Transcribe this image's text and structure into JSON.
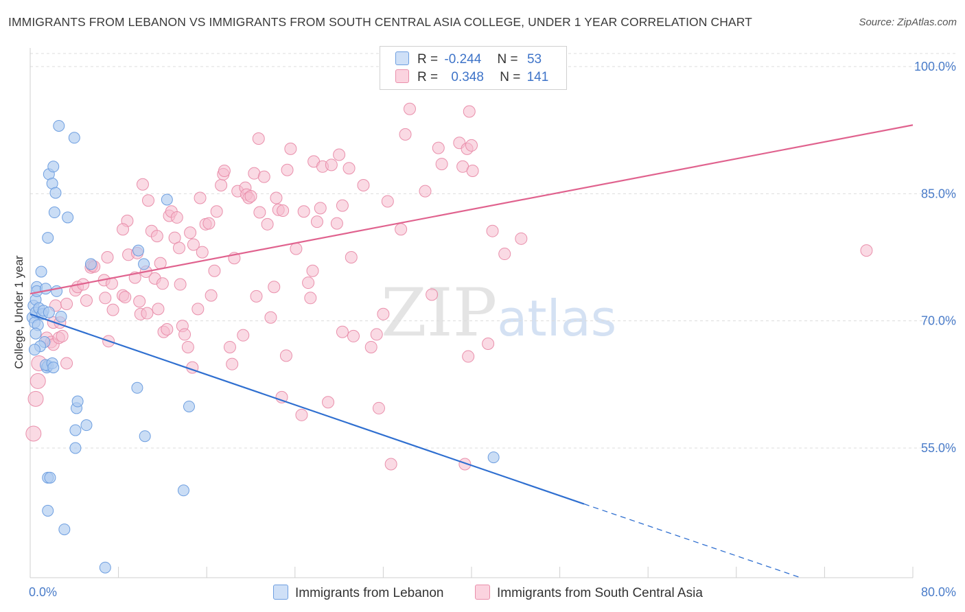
{
  "title": "IMMIGRANTS FROM LEBANON VS IMMIGRANTS FROM SOUTH CENTRAL ASIA COLLEGE, UNDER 1 YEAR CORRELATION CHART",
  "source": "Source: ZipAtlas.com",
  "watermark": {
    "a": "ZIP",
    "b": "atlas"
  },
  "legend": {
    "rows": [
      {
        "r_label": "R =",
        "r_value": "-0.244",
        "n_label": "N =",
        "n_value": "53",
        "color": "#aecbf0"
      },
      {
        "r_label": "R =",
        "r_value": "0.348",
        "n_label": "N =",
        "n_value": "141",
        "color": "#f6b8cb"
      }
    ]
  },
  "colors": {
    "blue_fill": "#aecbf0",
    "blue_stroke": "#6d9ee0",
    "blue_line": "#2f6fd0",
    "pink_fill": "#f6bccd",
    "pink_stroke": "#e98fab",
    "pink_line": "#e0628e",
    "grid": "#dcdcdc",
    "tick_text": "#4a7cc9"
  },
  "chart_data": {
    "type": "scatter",
    "title": "IMMIGRANTS FROM LEBANON VS IMMIGRANTS FROM SOUTH CENTRAL ASIA COLLEGE, UNDER 1 YEAR CORRELATION CHART",
    "xlabel": "",
    "ylabel": "College, Under 1 year",
    "xlim": [
      0,
      80
    ],
    "ylim": [
      39.5,
      105.5
    ],
    "x_ticks": [
      0,
      80
    ],
    "x_tick_labels": [
      "0.0%",
      "80.0%"
    ],
    "y_ticks": [
      55,
      70,
      85,
      100
    ],
    "y_tick_labels": [
      "55.0%",
      "70.0%",
      "85.0%",
      "100.0%"
    ],
    "grid": true,
    "legend_position": "top-center",
    "series": [
      {
        "name": "Immigrants from Lebanon",
        "color": "#aecbf0",
        "points": [
          [
            0.2,
            70.4
          ],
          [
            0.3,
            71.8
          ],
          [
            0.4,
            69.8
          ],
          [
            0.5,
            72.5
          ],
          [
            0.6,
            74.0
          ],
          [
            0.5,
            71.0
          ],
          [
            0.7,
            69.5
          ],
          [
            0.8,
            71.5
          ],
          [
            0.6,
            73.5
          ],
          [
            1.0,
            75.8
          ],
          [
            1.1,
            70.8
          ],
          [
            1.2,
            71.2
          ],
          [
            1.4,
            73.8
          ],
          [
            1.5,
            64.5
          ],
          [
            1.6,
            64.7
          ],
          [
            1.7,
            71.0
          ],
          [
            1.7,
            87.3
          ],
          [
            2.0,
            86.2
          ],
          [
            2.1,
            88.2
          ],
          [
            2.2,
            82.8
          ],
          [
            2.3,
            85.1
          ],
          [
            2.4,
            73.5
          ],
          [
            1.6,
            79.8
          ],
          [
            2.6,
            93.0
          ],
          [
            2.8,
            70.5
          ],
          [
            3.4,
            82.2
          ],
          [
            4.0,
            91.6
          ],
          [
            4.2,
            59.7
          ],
          [
            4.3,
            60.5
          ],
          [
            4.1,
            57.1
          ],
          [
            4.1,
            55.0
          ],
          [
            5.1,
            57.7
          ],
          [
            5.5,
            76.7
          ],
          [
            9.8,
            78.3
          ],
          [
            10.3,
            76.7
          ],
          [
            12.4,
            84.3
          ],
          [
            9.7,
            62.1
          ],
          [
            10.4,
            56.4
          ],
          [
            14.4,
            59.9
          ],
          [
            1.6,
            51.5
          ],
          [
            1.8,
            51.5
          ],
          [
            1.6,
            47.6
          ],
          [
            3.1,
            45.4
          ],
          [
            1.4,
            64.8
          ],
          [
            2.0,
            65.0
          ],
          [
            2.1,
            64.5
          ],
          [
            1.3,
            67.5
          ],
          [
            0.9,
            67.0
          ],
          [
            0.4,
            66.6
          ],
          [
            0.5,
            68.5
          ],
          [
            13.9,
            50.0
          ],
          [
            6.8,
            40.9
          ],
          [
            42.0,
            53.9
          ]
        ],
        "trend": {
          "x": [
            0.0,
            50.2
          ],
          "y": [
            70.8,
            48.4
          ],
          "dashed_to": [
            80.0,
            35.2
          ]
        }
      },
      {
        "name": "Immigrants from South Central Asia",
        "color": "#f6b8cb",
        "points": [
          [
            0.3,
            56.7
          ],
          [
            0.5,
            60.8
          ],
          [
            0.7,
            62.9
          ],
          [
            0.8,
            65.0
          ],
          [
            1.5,
            68.0
          ],
          [
            1.9,
            67.5
          ],
          [
            2.1,
            69.8
          ],
          [
            2.7,
            69.8
          ],
          [
            2.1,
            67.2
          ],
          [
            2.6,
            68.0
          ],
          [
            2.3,
            71.8
          ],
          [
            2.9,
            68.2
          ],
          [
            3.3,
            72.0
          ],
          [
            3.3,
            65.0
          ],
          [
            4.1,
            73.6
          ],
          [
            4.3,
            74.0
          ],
          [
            4.8,
            74.3
          ],
          [
            5.1,
            72.4
          ],
          [
            5.5,
            76.3
          ],
          [
            5.6,
            76.5
          ],
          [
            5.8,
            76.4
          ],
          [
            6.7,
            74.8
          ],
          [
            6.8,
            72.7
          ],
          [
            7.0,
            77.5
          ],
          [
            7.5,
            71.3
          ],
          [
            7.4,
            74.4
          ],
          [
            8.4,
            73.0
          ],
          [
            8.6,
            72.8
          ],
          [
            8.8,
            81.8
          ],
          [
            8.4,
            80.8
          ],
          [
            8.9,
            77.8
          ],
          [
            9.5,
            75.1
          ],
          [
            9.7,
            78.0
          ],
          [
            9.9,
            72.3
          ],
          [
            10.0,
            70.8
          ],
          [
            10.2,
            86.1
          ],
          [
            10.5,
            75.8
          ],
          [
            10.7,
            84.2
          ],
          [
            11.0,
            80.6
          ],
          [
            11.3,
            75.0
          ],
          [
            11.5,
            80.0
          ],
          [
            11.6,
            71.4
          ],
          [
            11.8,
            76.8
          ],
          [
            12.0,
            74.4
          ],
          [
            12.1,
            68.7
          ],
          [
            12.4,
            69.0
          ],
          [
            12.6,
            82.4
          ],
          [
            12.8,
            82.9
          ],
          [
            13.1,
            79.8
          ],
          [
            13.3,
            82.2
          ],
          [
            13.5,
            78.6
          ],
          [
            13.6,
            74.3
          ],
          [
            13.8,
            69.4
          ],
          [
            14.0,
            68.4
          ],
          [
            14.3,
            66.9
          ],
          [
            14.5,
            80.4
          ],
          [
            14.7,
            64.5
          ],
          [
            14.8,
            79.0
          ],
          [
            15.2,
            71.4
          ],
          [
            15.4,
            84.5
          ],
          [
            15.6,
            78.1
          ],
          [
            15.9,
            81.4
          ],
          [
            16.2,
            81.5
          ],
          [
            16.4,
            73.0
          ],
          [
            16.7,
            75.9
          ],
          [
            16.9,
            82.9
          ],
          [
            17.3,
            86.0
          ],
          [
            17.5,
            87.3
          ],
          [
            17.6,
            87.7
          ],
          [
            18.1,
            66.9
          ],
          [
            18.5,
            77.4
          ],
          [
            18.8,
            85.3
          ],
          [
            19.3,
            68.3
          ],
          [
            19.5,
            85.7
          ],
          [
            19.6,
            84.9
          ],
          [
            19.8,
            84.5
          ],
          [
            20.0,
            84.7
          ],
          [
            20.3,
            87.4
          ],
          [
            20.5,
            72.9
          ],
          [
            20.7,
            91.5
          ],
          [
            20.8,
            82.8
          ],
          [
            21.2,
            87.0
          ],
          [
            21.5,
            81.4
          ],
          [
            21.8,
            70.4
          ],
          [
            22.1,
            74.0
          ],
          [
            22.3,
            84.5
          ],
          [
            22.5,
            83.1
          ],
          [
            22.9,
            83.0
          ],
          [
            23.2,
            65.9
          ],
          [
            23.3,
            87.8
          ],
          [
            23.6,
            90.3
          ],
          [
            24.1,
            78.5
          ],
          [
            24.6,
            58.9
          ],
          [
            24.8,
            82.9
          ],
          [
            25.2,
            74.5
          ],
          [
            25.4,
            72.7
          ],
          [
            25.7,
            88.8
          ],
          [
            26.0,
            81.7
          ],
          [
            26.3,
            83.3
          ],
          [
            26.5,
            88.2
          ],
          [
            27.0,
            60.4
          ],
          [
            27.3,
            88.4
          ],
          [
            27.8,
            81.5
          ],
          [
            28.0,
            89.6
          ],
          [
            28.3,
            83.6
          ],
          [
            28.3,
            68.7
          ],
          [
            28.9,
            88.0
          ],
          [
            29.3,
            68.2
          ],
          [
            30.2,
            86.0
          ],
          [
            30.9,
            66.9
          ],
          [
            31.4,
            68.4
          ],
          [
            31.6,
            59.7
          ],
          [
            32.4,
            84.1
          ],
          [
            32.7,
            53.1
          ],
          [
            33.6,
            80.8
          ],
          [
            34.0,
            92.0
          ],
          [
            34.4,
            95.0
          ],
          [
            35.8,
            85.3
          ],
          [
            36.4,
            73.1
          ],
          [
            37.0,
            90.4
          ],
          [
            37.3,
            88.5
          ],
          [
            38.9,
            91.0
          ],
          [
            39.2,
            88.2
          ],
          [
            39.6,
            90.3
          ],
          [
            39.7,
            65.8
          ],
          [
            39.8,
            94.7
          ],
          [
            40.0,
            90.7
          ],
          [
            40.1,
            87.7
          ],
          [
            39.4,
            53.1
          ],
          [
            41.5,
            67.3
          ],
          [
            41.9,
            80.6
          ],
          [
            43.0,
            77.9
          ],
          [
            44.5,
            79.7
          ],
          [
            75.8,
            78.3
          ],
          [
            25.6,
            75.9
          ],
          [
            32.0,
            70.8
          ],
          [
            10.6,
            70.9
          ],
          [
            22.8,
            61.0
          ],
          [
            7.1,
            67.6
          ],
          [
            18.3,
            64.9
          ],
          [
            29.1,
            77.5
          ]
        ],
        "trend": {
          "x": [
            0.0,
            80.0
          ],
          "y": [
            73.2,
            93.1
          ]
        }
      }
    ]
  }
}
